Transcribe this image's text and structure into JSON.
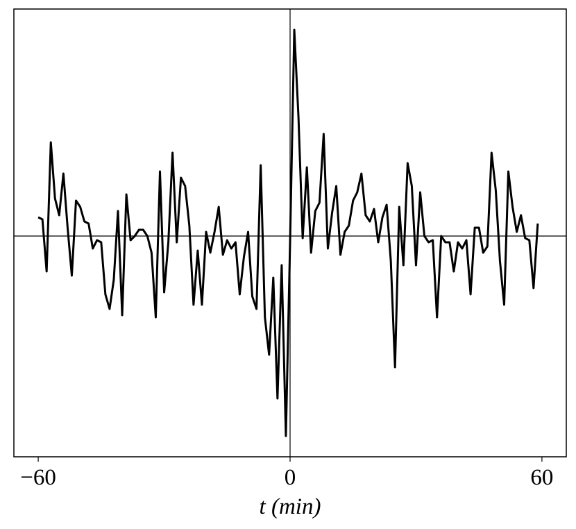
{
  "chart_data": {
    "type": "line",
    "xlabel": "t (min)",
    "x": [
      -60,
      -59,
      -58,
      -57,
      -56,
      -55,
      -54,
      -53,
      -52,
      -51,
      -50,
      -49,
      -48,
      -47,
      -46,
      -45,
      -44,
      -43,
      -42,
      -41,
      -40,
      -39,
      -38,
      -37,
      -36,
      -35,
      -34,
      -33,
      -32,
      -31,
      -30,
      -29,
      -28,
      -27,
      -26,
      -25,
      -24,
      -23,
      -22,
      -21,
      -20,
      -19,
      -18,
      -17,
      -16,
      -15,
      -14,
      -13,
      -12,
      -11,
      -10,
      -9,
      -8,
      -7,
      -6,
      -5,
      -4,
      -3,
      -2,
      -1,
      0,
      1,
      2,
      3,
      4,
      5,
      6,
      7,
      8,
      9,
      10,
      11,
      12,
      13,
      14,
      15,
      16,
      17,
      18,
      19,
      20,
      21,
      22,
      23,
      24,
      25,
      26,
      27,
      28,
      29,
      30,
      31,
      32,
      33,
      34,
      35,
      36,
      37,
      38,
      39,
      40,
      41,
      42,
      43,
      44,
      45,
      46,
      47,
      48,
      49,
      50,
      51,
      52,
      53,
      54,
      55,
      56,
      57,
      58,
      59
    ],
    "series": [
      {
        "color": "#000000",
        "values": [
          0.09,
          0.08,
          -0.17,
          0.45,
          0.18,
          0.1,
          0.3,
          0.04,
          -0.19,
          0.17,
          0.14,
          0.07,
          0.06,
          -0.06,
          -0.02,
          -0.03,
          -0.28,
          -0.35,
          -0.21,
          0.12,
          -0.38,
          0.2,
          -0.02,
          0.0,
          0.03,
          0.03,
          0.0,
          -0.08,
          -0.39,
          0.31,
          -0.27,
          -0.03,
          0.4,
          -0.03,
          0.28,
          0.24,
          0.05,
          -0.33,
          -0.07,
          -0.33,
          0.02,
          -0.08,
          0.02,
          0.14,
          -0.09,
          -0.02,
          -0.06,
          -0.03,
          -0.28,
          -0.1,
          0.02,
          -0.29,
          -0.35,
          0.34,
          -0.39,
          -0.57,
          -0.2,
          -0.78,
          -0.14,
          -0.96,
          -0.03,
          0.99,
          0.57,
          -0.01,
          0.33,
          -0.08,
          0.12,
          0.16,
          0.49,
          -0.06,
          0.11,
          0.24,
          -0.09,
          0.02,
          0.05,
          0.17,
          0.21,
          0.3,
          0.1,
          0.07,
          0.13,
          -0.03,
          0.09,
          0.15,
          -0.12,
          -0.63,
          0.14,
          -0.14,
          0.35,
          0.24,
          -0.14,
          0.21,
          0.0,
          -0.03,
          -0.02,
          -0.39,
          0.0,
          -0.03,
          -0.03,
          -0.17,
          -0.03,
          -0.06,
          -0.02,
          -0.28,
          0.04,
          0.04,
          -0.08,
          -0.05,
          0.4,
          0.22,
          -0.12,
          -0.33,
          0.31,
          0.14,
          0.02,
          0.1,
          -0.01,
          -0.02,
          -0.25,
          0.06
        ]
      }
    ],
    "xlim": [
      -65.8,
      65.8
    ],
    "ylim": [
      -1.06,
      1.09
    ],
    "xticks": [
      {
        "value": -60,
        "label": "−60"
      },
      0,
      60
    ],
    "hline": 0,
    "vline": 0
  }
}
